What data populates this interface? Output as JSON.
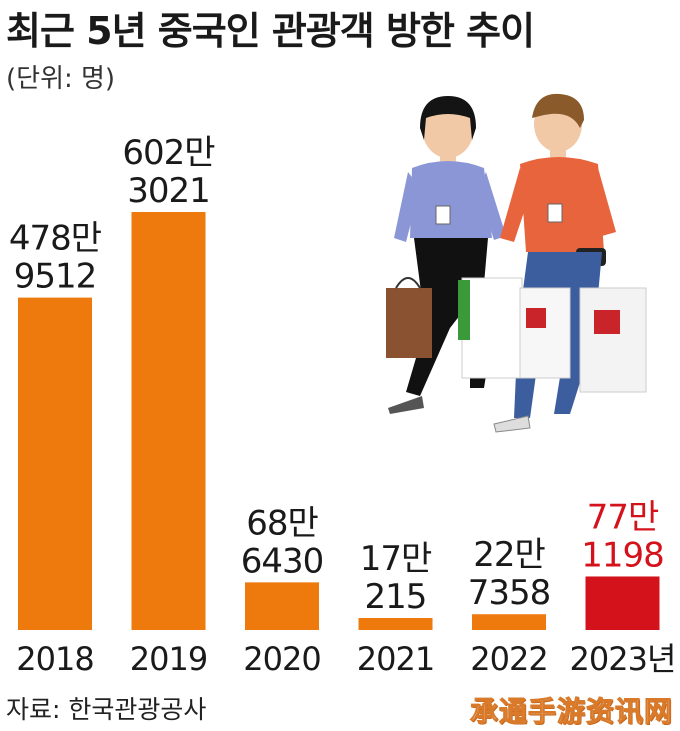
{
  "chart_data": {
    "type": "bar",
    "title": "최근 5년 중국인 관광객 방한 추이",
    "subtitle": "(단위: 명)",
    "categories": [
      "2018",
      "2019",
      "2020",
      "2021",
      "2022",
      "2023년"
    ],
    "values": [
      4789512,
      6023021,
      686430,
      170215,
      227358,
      771198
    ],
    "value_labels": [
      [
        "478만",
        "9512"
      ],
      [
        "602만",
        "3021"
      ],
      [
        "68만",
        "6430"
      ],
      [
        "17만",
        "215"
      ],
      [
        "22만",
        "7358"
      ],
      [
        "77만",
        "1198"
      ]
    ],
    "highlight_index": 5,
    "colors": {
      "bar": "#ee7a0e",
      "highlight": "#d4121c",
      "label": "#1a1a1a",
      "highlight_label": "#d4121c"
    },
    "source": "자료: 한국관광공사"
  },
  "watermark": "承通手游资讯网",
  "illustration_icon": "tourists-shopping-icon"
}
